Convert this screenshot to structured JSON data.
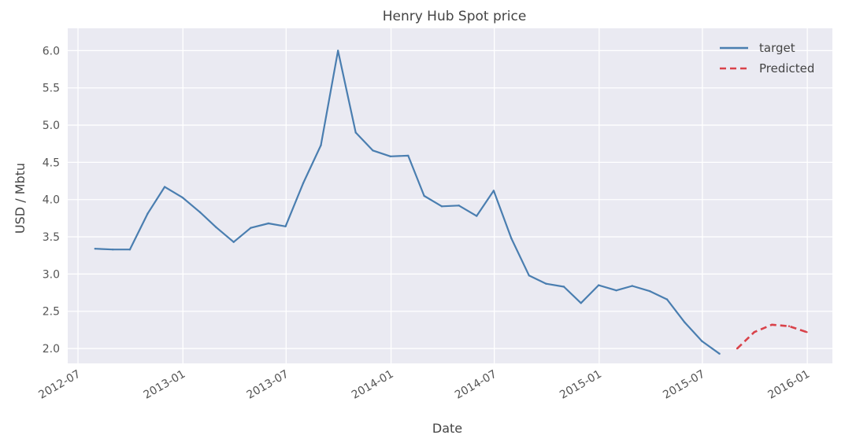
{
  "chart_data": {
    "type": "line",
    "title": "Henry Hub Spot price",
    "xlabel": "Date",
    "ylabel": "USD / Mbtu",
    "ylim": [
      1.8,
      6.3
    ],
    "xlim": [
      "2012-06-13",
      "2016-02-14"
    ],
    "yticks": [
      2.0,
      2.5,
      3.0,
      3.5,
      4.0,
      4.5,
      5.0,
      5.5,
      6.0
    ],
    "ytick_labels": [
      "2.0",
      "2.5",
      "3.0",
      "3.5",
      "4.0",
      "4.5",
      "5.0",
      "5.5",
      "6.0"
    ],
    "xticks": [
      "2012-07-01",
      "2013-01-01",
      "2013-07-01",
      "2014-01-01",
      "2014-07-01",
      "2015-01-01",
      "2015-07-01",
      "2016-01-01"
    ],
    "xtick_labels": [
      "2012-07",
      "2013-01",
      "2013-07",
      "2014-01",
      "2014-07",
      "2015-01",
      "2015-07",
      "2016-01"
    ],
    "grid": true,
    "legend": "top-right",
    "series": [
      {
        "name": "target",
        "color": "#4a7eb0",
        "style": "solid",
        "x": [
          "2012-07-31",
          "2012-08-31",
          "2012-09-30",
          "2012-10-31",
          "2012-11-30",
          "2012-12-31",
          "2013-01-31",
          "2013-02-28",
          "2013-03-31",
          "2013-04-30",
          "2013-05-31",
          "2013-06-30",
          "2013-07-31",
          "2013-08-31",
          "2013-09-30",
          "2013-10-31",
          "2013-11-30",
          "2013-12-31",
          "2014-01-31",
          "2014-02-28",
          "2014-03-31",
          "2014-04-30",
          "2014-05-31",
          "2014-06-30",
          "2014-07-31",
          "2014-08-31",
          "2014-09-30",
          "2014-10-31",
          "2014-11-30",
          "2014-12-31",
          "2015-01-31",
          "2015-02-28",
          "2015-03-31",
          "2015-04-30",
          "2015-05-31",
          "2015-06-30",
          "2015-07-31"
        ],
        "values": [
          3.34,
          3.33,
          3.33,
          3.81,
          4.17,
          4.03,
          3.83,
          3.63,
          3.43,
          3.62,
          3.68,
          3.64,
          4.22,
          4.73,
          6.0,
          4.9,
          4.66,
          4.58,
          4.59,
          4.05,
          3.91,
          3.92,
          3.78,
          4.12,
          3.48,
          2.98,
          2.87,
          2.83,
          2.61,
          2.85,
          2.78,
          2.84,
          2.77,
          2.66,
          2.35,
          2.1,
          1.93
        ]
      },
      {
        "name": "Predicted",
        "color": "#d9424a",
        "style": "dashed",
        "x": [
          "2015-08-31",
          "2015-09-30",
          "2015-10-31",
          "2015-11-30",
          "2015-12-31"
        ],
        "values": [
          2.0,
          2.22,
          2.32,
          2.3,
          2.22
        ]
      }
    ]
  }
}
